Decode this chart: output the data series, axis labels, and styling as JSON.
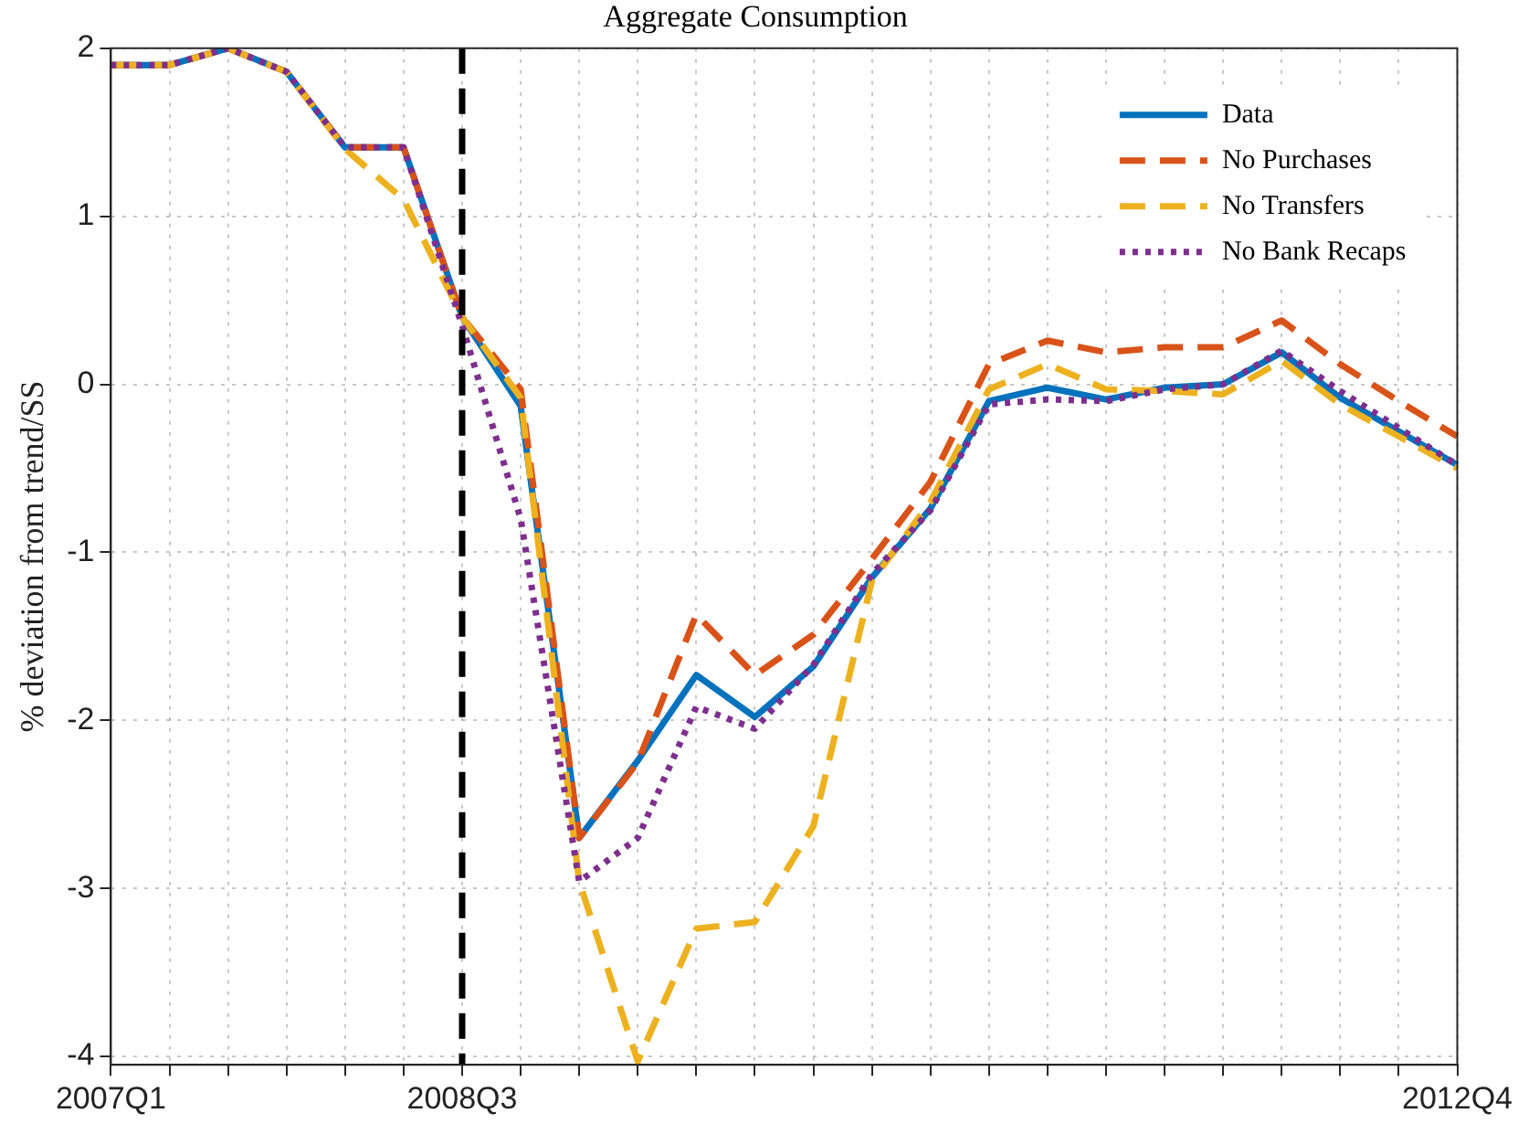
{
  "chart_data": {
    "type": "line",
    "title": "Aggregate Consumption",
    "ylabel": "% deviation from trend/SS",
    "categories": [
      "2007Q1",
      null,
      null,
      null,
      null,
      null,
      "2008Q3",
      null,
      null,
      null,
      null,
      null,
      null,
      null,
      null,
      null,
      null,
      null,
      null,
      null,
      null,
      null,
      null,
      "2012Q4"
    ],
    "series": [
      {
        "name": "Data",
        "color": "#0072bd",
        "line_style": "solid",
        "values": [
          1.9,
          1.9,
          2.0,
          1.86,
          1.41,
          1.41,
          0.4,
          -0.13,
          -2.7,
          -2.24,
          -1.73,
          -1.98,
          -1.68,
          -1.15,
          -0.74,
          -0.1,
          -0.02,
          -0.09,
          -0.02,
          0.0,
          0.19,
          -0.08,
          -0.28,
          -0.48
        ]
      },
      {
        "name": "No Purchases",
        "color": "#d95319",
        "line_style": "dashed",
        "values": [
          1.9,
          1.9,
          2.0,
          1.86,
          1.41,
          1.41,
          0.4,
          -0.03,
          -2.7,
          -2.25,
          -1.37,
          -1.73,
          -1.49,
          -1.04,
          -0.58,
          0.12,
          0.26,
          0.19,
          0.22,
          0.22,
          0.38,
          0.12,
          -0.1,
          -0.31
        ]
      },
      {
        "name": "No Transfers",
        "color": "#edb120",
        "line_style": "dashed",
        "values": [
          1.9,
          1.9,
          2.0,
          1.86,
          1.4,
          1.1,
          0.4,
          -0.08,
          -2.96,
          -4.03,
          -3.24,
          -3.2,
          -2.63,
          -1.17,
          -0.7,
          -0.03,
          0.12,
          -0.03,
          -0.04,
          -0.06,
          0.14,
          -0.12,
          -0.31,
          -0.5
        ]
      },
      {
        "name": "No Bank Recaps",
        "color": "#7e2f8e",
        "line_style": "dotted",
        "values": [
          1.9,
          1.9,
          2.0,
          1.86,
          1.41,
          1.41,
          0.35,
          -0.8,
          -2.96,
          -2.7,
          -1.92,
          -2.05,
          -1.67,
          -1.13,
          -0.75,
          -0.12,
          -0.09,
          -0.1,
          -0.03,
          0.0,
          0.2,
          -0.04,
          -0.26,
          -0.48
        ]
      }
    ],
    "ylim": [
      -4.05,
      2
    ],
    "yticks": [
      -4,
      -3,
      -2,
      -1,
      0,
      1,
      2
    ],
    "grid": true,
    "legend": "top right",
    "marker": "none",
    "ref_lines": [
      {
        "axis": "x",
        "value": "2008Q3",
        "color": "#000000",
        "line_style": "dashed"
      }
    ]
  }
}
